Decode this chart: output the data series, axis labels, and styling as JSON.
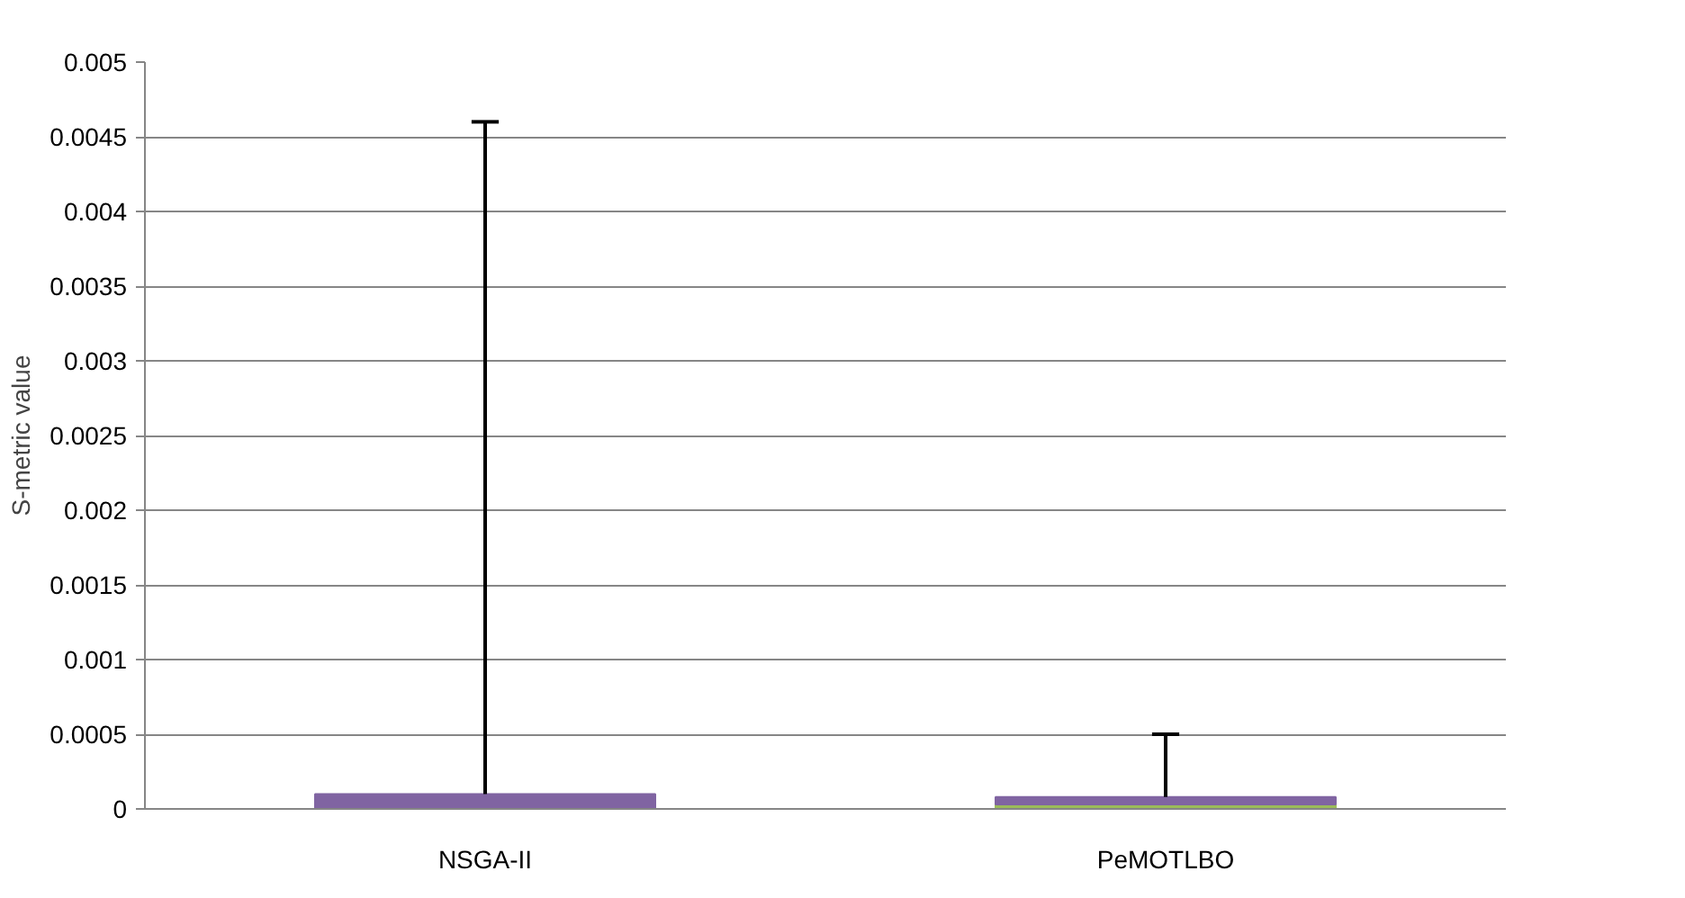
{
  "chart_data": {
    "type": "bar",
    "stacked": true,
    "ylabel": "S-metric value",
    "categories": [
      "NSGA-II",
      "PeMOTLBO"
    ],
    "series": [
      {
        "color": "#9bbb59",
        "values": [
          0.0,
          3e-05
        ]
      },
      {
        "color": "#8064a2",
        "values": [
          0.0001,
          5e-05
        ],
        "errors": [
          [
            0.0001,
            0.0046
          ],
          [
            8e-05,
            0.0005
          ]
        ]
      }
    ],
    "ylim": [
      0,
      0.005
    ],
    "yticks": [
      0,
      0.0005,
      0.001,
      0.0015,
      0.002,
      0.0025,
      0.003,
      0.0035,
      0.004,
      0.0045,
      0.005
    ],
    "grid": "y"
  }
}
